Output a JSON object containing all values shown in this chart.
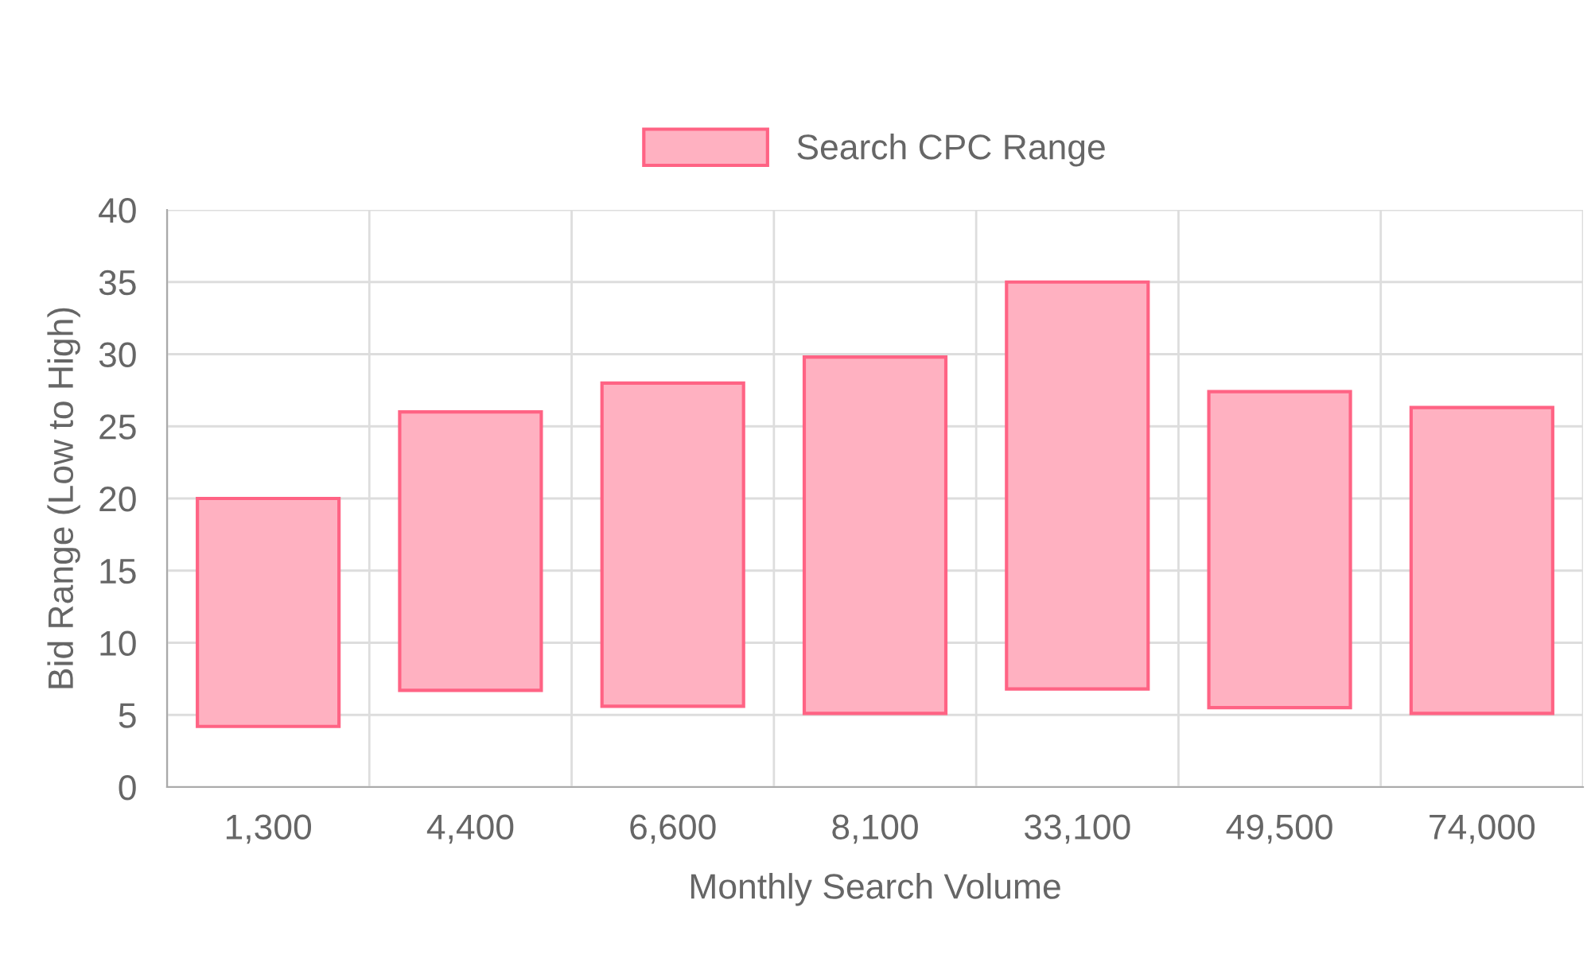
{
  "chart_data": {
    "type": "bar",
    "xlabel": "Monthly Search Volume",
    "ylabel": "Bid Range (Low to High)",
    "categories": [
      "1,300",
      "4,400",
      "6,600",
      "8,100",
      "33,100",
      "49,500",
      "74,000"
    ],
    "series": [
      {
        "name": "Search CPC Range",
        "color": "#ffb1c1",
        "base": [
          4.2,
          6.7,
          5.6,
          5.1,
          6.8,
          5.5,
          5.1
        ],
        "values": [
          15.8,
          19.3,
          22.4,
          24.7,
          28.2,
          21.9,
          21.2
        ]
      }
    ],
    "ylim": [
      0,
      40
    ],
    "yticks": [
      0,
      5,
      10,
      15,
      20,
      25,
      30,
      35,
      40
    ],
    "grid": true,
    "legend": "top"
  }
}
